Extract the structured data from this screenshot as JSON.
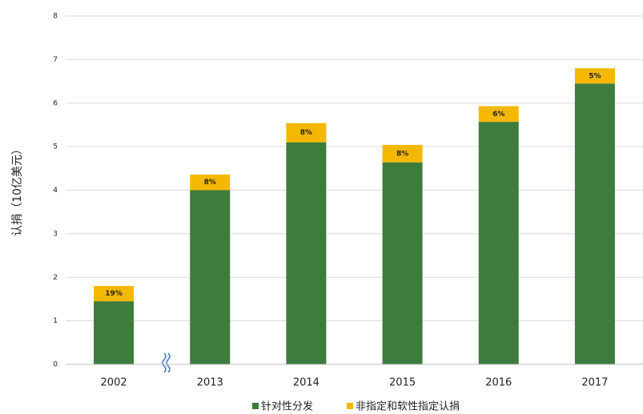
{
  "chart_data": {
    "type": "stacked_bar",
    "y_label": "认捐（10亿美元）",
    "categories": [
      "2002",
      "2013",
      "2014",
      "2015",
      "2016",
      "2017"
    ],
    "series": [
      {
        "name": "针对性分发",
        "color": "#3d7c3c",
        "values": [
          1.45,
          4.0,
          5.1,
          4.64,
          5.57,
          6.45
        ]
      },
      {
        "name": "非指定和软性指定认捐",
        "color": "#f5b800",
        "values": [
          0.35,
          0.36,
          0.44,
          0.4,
          0.36,
          0.35
        ],
        "percent_labels": [
          "19%",
          "8%",
          "8%",
          "8%",
          "6%",
          "5%"
        ]
      }
    ],
    "ylim": [
      0,
      8
    ],
    "yticks": [
      0,
      1,
      2,
      3,
      4,
      5,
      6,
      7,
      8
    ],
    "grid": true,
    "legend": "bottom"
  }
}
